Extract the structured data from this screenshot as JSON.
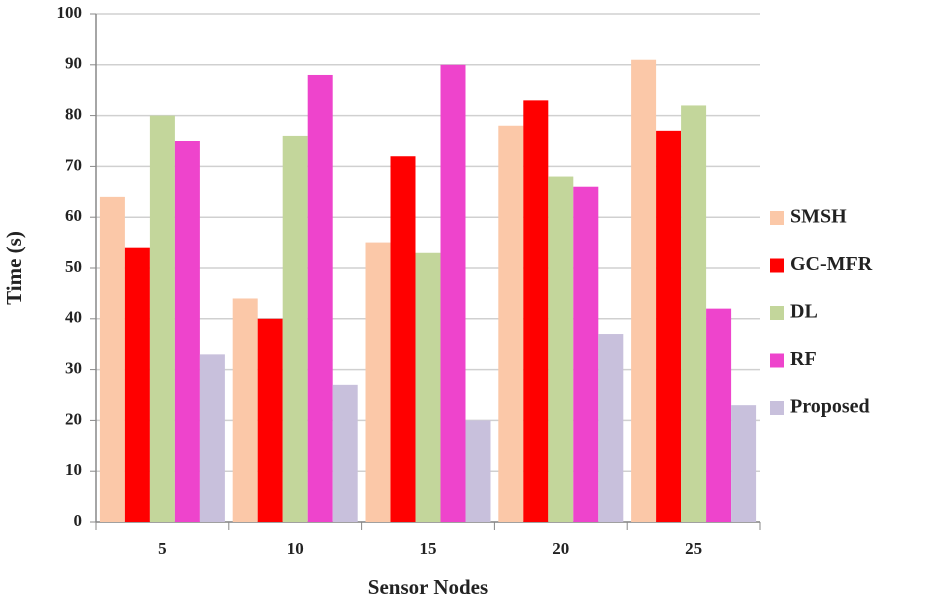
{
  "chart_data": {
    "type": "bar",
    "x_label": "Sensor Nodes",
    "y_label": "Time (s)",
    "categories": [
      "5",
      "10",
      "15",
      "20",
      "25"
    ],
    "series": [
      {
        "name": "SMSH",
        "color": "#fbc8a8",
        "values": [
          64,
          44,
          55,
          78,
          91
        ]
      },
      {
        "name": "GC-MFR",
        "color": "#ff0000",
        "values": [
          54,
          40,
          72,
          83,
          77
        ]
      },
      {
        "name": "DL",
        "color": "#c3d69b",
        "values": [
          80,
          76,
          53,
          68,
          82
        ]
      },
      {
        "name": "RF",
        "color": "#ee44cc",
        "values": [
          75,
          88,
          90,
          66,
          42
        ]
      },
      {
        "name": "Proposed",
        "color": "#c8c0dc",
        "values": [
          33,
          27,
          20,
          37,
          23
        ]
      }
    ],
    "ylim": [
      0,
      100
    ],
    "yticks": [
      0,
      10,
      20,
      30,
      40,
      50,
      60,
      70,
      80,
      90,
      100
    ],
    "grid": true,
    "legend": "right"
  }
}
